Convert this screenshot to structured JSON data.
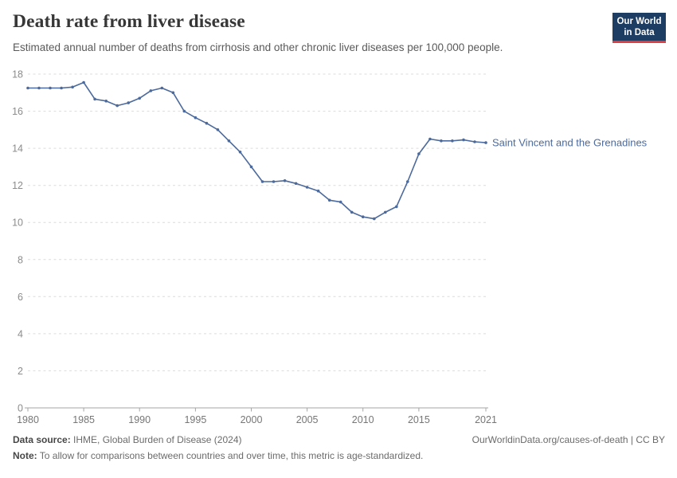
{
  "header": {
    "title": "Death rate from liver disease",
    "subtitle": "Estimated annual number of deaths from cirrhosis and other chronic liver diseases per 100,000 people.",
    "logo": {
      "line1": "Our World",
      "line2": "in Data",
      "background_color": "#1d3d63",
      "bar_color": "#dc3e43"
    }
  },
  "chart_data": {
    "type": "line",
    "title": "Death rate from liver disease",
    "entity": "Saint Vincent and the Grenadines",
    "line_color": "#4C6A9C",
    "grid": true,
    "legend_position": "right-of-line-end",
    "x": [
      1980,
      1981,
      1982,
      1983,
      1984,
      1985,
      1986,
      1987,
      1988,
      1989,
      1990,
      1991,
      1992,
      1993,
      1994,
      1995,
      1996,
      1997,
      1998,
      1999,
      2000,
      2001,
      2002,
      2003,
      2004,
      2005,
      2006,
      2007,
      2008,
      2009,
      2010,
      2011,
      2012,
      2013,
      2014,
      2015,
      2016,
      2017,
      2018,
      2019,
      2020,
      2021
    ],
    "values": [
      17.25,
      17.25,
      17.25,
      17.25,
      17.3,
      17.55,
      16.65,
      16.55,
      16.3,
      16.45,
      16.7,
      17.1,
      17.25,
      17.0,
      16.0,
      15.65,
      15.35,
      15.0,
      14.4,
      13.8,
      13.0,
      12.2,
      12.2,
      12.25,
      12.1,
      11.9,
      11.7,
      11.2,
      11.1,
      10.55,
      10.3,
      10.2,
      10.55,
      10.85,
      12.2,
      13.7,
      14.5,
      14.4,
      14.4,
      14.45,
      14.35,
      14.3
    ],
    "ylim": [
      0,
      18
    ],
    "yticks": [
      0,
      2,
      4,
      6,
      8,
      10,
      12,
      14,
      16,
      18
    ],
    "xticks": [
      1980,
      1985,
      1990,
      1995,
      2000,
      2005,
      2010,
      2015,
      2021
    ],
    "xlabel": "",
    "ylabel": ""
  },
  "footer": {
    "source_label": "Data source:",
    "source_text": "IHME, Global Burden of Disease (2024)",
    "right_text": "OurWorldinData.org/causes-of-death | CC BY",
    "note_label": "Note:",
    "note_text": "To allow for comparisons between countries and over time, this metric is age-standardized."
  }
}
